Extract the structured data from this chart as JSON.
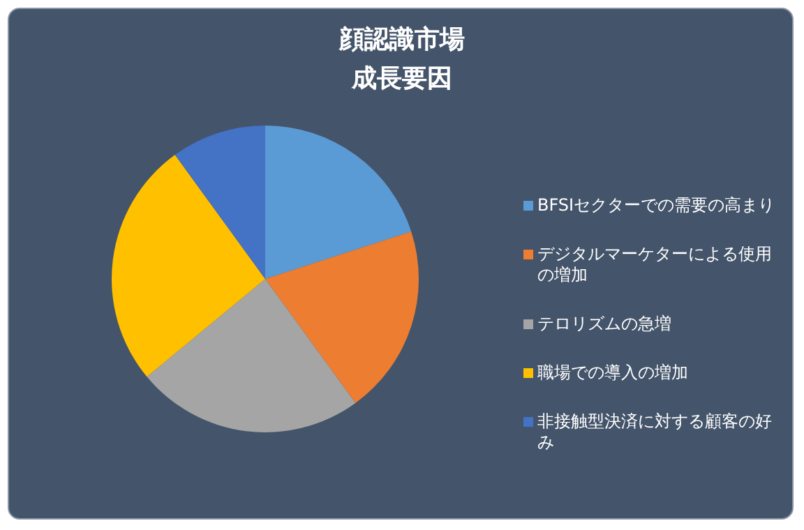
{
  "chart_data": {
    "type": "pie",
    "title": "顔認識市場",
    "subtitle": "成長要因",
    "categories": [
      "BFSIセクターでの需要の高まり",
      "デジタルマーケターによる使用の増加",
      "テロリズムの急増",
      "職場での導入の増加",
      "非接触型決済に対する顧客の好み"
    ],
    "values": [
      20,
      20,
      24,
      26,
      10
    ],
    "colors": [
      "#5b9bd5",
      "#ed7d31",
      "#a5a5a5",
      "#ffc000",
      "#4472c4"
    ],
    "legend": "right"
  }
}
